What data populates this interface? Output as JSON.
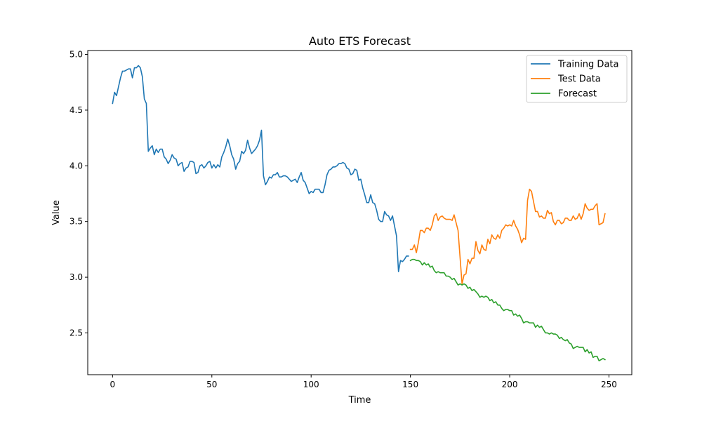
{
  "chart_data": {
    "type": "line",
    "title": "Auto ETS Forecast",
    "xlabel": "Time",
    "ylabel": "Value",
    "xlim": [
      -12.5,
      261.5
    ],
    "ylim": [
      2.125,
      5.035
    ],
    "xticks": [
      0,
      50,
      100,
      150,
      200,
      250
    ],
    "yticks": [
      2.5,
      3.0,
      3.5,
      4.0,
      4.5,
      5.0
    ],
    "xtick_labels": [
      "0",
      "50",
      "100",
      "150",
      "200",
      "250"
    ],
    "ytick_labels": [
      "2.5",
      "3.0",
      "3.5",
      "4.0",
      "4.5",
      "5.0"
    ],
    "grid": false,
    "legend_position": "top-right",
    "series": [
      {
        "name": "Training Data",
        "color": "#1f77b4",
        "x_start": 0,
        "values": [
          4.56,
          4.66,
          4.63,
          4.71,
          4.79,
          4.85,
          4.85,
          4.86,
          4.87,
          4.87,
          4.79,
          4.88,
          4.88,
          4.9,
          4.88,
          4.8,
          4.6,
          4.56,
          4.13,
          4.16,
          4.18,
          4.1,
          4.15,
          4.12,
          4.15,
          4.15,
          4.08,
          4.06,
          4.02,
          4.05,
          4.1,
          4.07,
          4.06,
          4.0,
          4.02,
          4.03,
          3.95,
          3.98,
          3.99,
          4.04,
          4.04,
          4.03,
          3.93,
          3.94,
          4.0,
          4.01,
          3.98,
          4.0,
          4.03,
          4.04,
          3.98,
          4.01,
          3.98,
          4.01,
          3.99,
          4.08,
          4.12,
          4.17,
          4.24,
          4.18,
          4.1,
          4.06,
          3.97,
          4.02,
          4.04,
          4.13,
          4.11,
          4.14,
          4.23,
          4.16,
          4.11,
          4.13,
          4.15,
          4.18,
          4.23,
          4.32,
          3.91,
          3.83,
          3.86,
          3.9,
          3.89,
          3.92,
          3.92,
          3.94,
          3.9,
          3.9,
          3.91,
          3.91,
          3.9,
          3.88,
          3.86,
          3.87,
          3.88,
          3.85,
          3.9,
          3.94,
          3.87,
          3.85,
          3.8,
          3.75,
          3.77,
          3.76,
          3.79,
          3.79,
          3.79,
          3.76,
          3.76,
          3.83,
          3.92,
          3.96,
          3.97,
          3.99,
          3.99,
          4.0,
          4.02,
          4.02,
          4.03,
          4.02,
          3.98,
          3.97,
          3.92,
          3.93,
          3.97,
          3.96,
          3.87,
          3.88,
          3.8,
          3.74,
          3.67,
          3.67,
          3.74,
          3.67,
          3.66,
          3.6,
          3.52,
          3.5,
          3.5,
          3.59,
          3.56,
          3.55,
          3.51,
          3.55,
          3.46,
          3.37,
          3.05,
          3.15,
          3.14,
          3.16,
          3.19,
          3.19
        ]
      },
      {
        "name": "Test Data",
        "color": "#ff7f0e",
        "x_start": 150,
        "values": [
          3.25,
          3.25,
          3.29,
          3.22,
          3.31,
          3.42,
          3.42,
          3.4,
          3.44,
          3.44,
          3.42,
          3.47,
          3.55,
          3.57,
          3.51,
          3.54,
          3.55,
          3.53,
          3.52,
          3.52,
          3.52,
          3.51,
          3.56,
          3.49,
          3.42,
          3.18,
          2.94,
          3.02,
          3.03,
          3.16,
          3.12,
          3.17,
          3.17,
          3.32,
          3.24,
          3.21,
          3.29,
          3.25,
          3.24,
          3.34,
          3.3,
          3.38,
          3.35,
          3.34,
          3.38,
          3.35,
          3.42,
          3.44,
          3.47,
          3.46,
          3.47,
          3.46,
          3.51,
          3.46,
          3.43,
          3.38,
          3.31,
          3.35,
          3.34,
          3.69,
          3.79,
          3.77,
          3.68,
          3.59,
          3.59,
          3.54,
          3.55,
          3.53,
          3.53,
          3.6,
          3.57,
          3.58,
          3.5,
          3.47,
          3.51,
          3.51,
          3.48,
          3.49,
          3.53,
          3.53,
          3.51,
          3.51,
          3.55,
          3.52,
          3.53,
          3.57,
          3.52,
          3.57,
          3.66,
          3.62,
          3.6,
          3.61,
          3.61,
          3.64,
          3.66,
          3.47,
          3.48,
          3.49,
          3.57
        ]
      },
      {
        "name": "Forecast",
        "color": "#2ca02c",
        "x_start": 150,
        "values": [
          3.15,
          3.16,
          3.16,
          3.15,
          3.15,
          3.14,
          3.11,
          3.13,
          3.11,
          3.12,
          3.09,
          3.1,
          3.06,
          3.04,
          3.05,
          3.04,
          3.04,
          3.04,
          3.01,
          3.01,
          3.0,
          2.98,
          2.99,
          2.96,
          2.93,
          2.94,
          2.93,
          2.94,
          2.93,
          2.9,
          2.91,
          2.88,
          2.89,
          2.87,
          2.85,
          2.82,
          2.83,
          2.82,
          2.83,
          2.82,
          2.79,
          2.8,
          2.77,
          2.78,
          2.75,
          2.75,
          2.72,
          2.7,
          2.71,
          2.71,
          2.7,
          2.7,
          2.66,
          2.67,
          2.65,
          2.66,
          2.63,
          2.59,
          2.6,
          2.6,
          2.59,
          2.59,
          2.59,
          2.55,
          2.57,
          2.55,
          2.56,
          2.53,
          2.5,
          2.5,
          2.49,
          2.5,
          2.49,
          2.49,
          2.48,
          2.45,
          2.46,
          2.44,
          2.43,
          2.44,
          2.41,
          2.4,
          2.36,
          2.37,
          2.38,
          2.37,
          2.37,
          2.37,
          2.33,
          2.35,
          2.32,
          2.33,
          2.28,
          2.29,
          2.29,
          2.25,
          2.26,
          2.27,
          2.26
        ]
      }
    ]
  }
}
